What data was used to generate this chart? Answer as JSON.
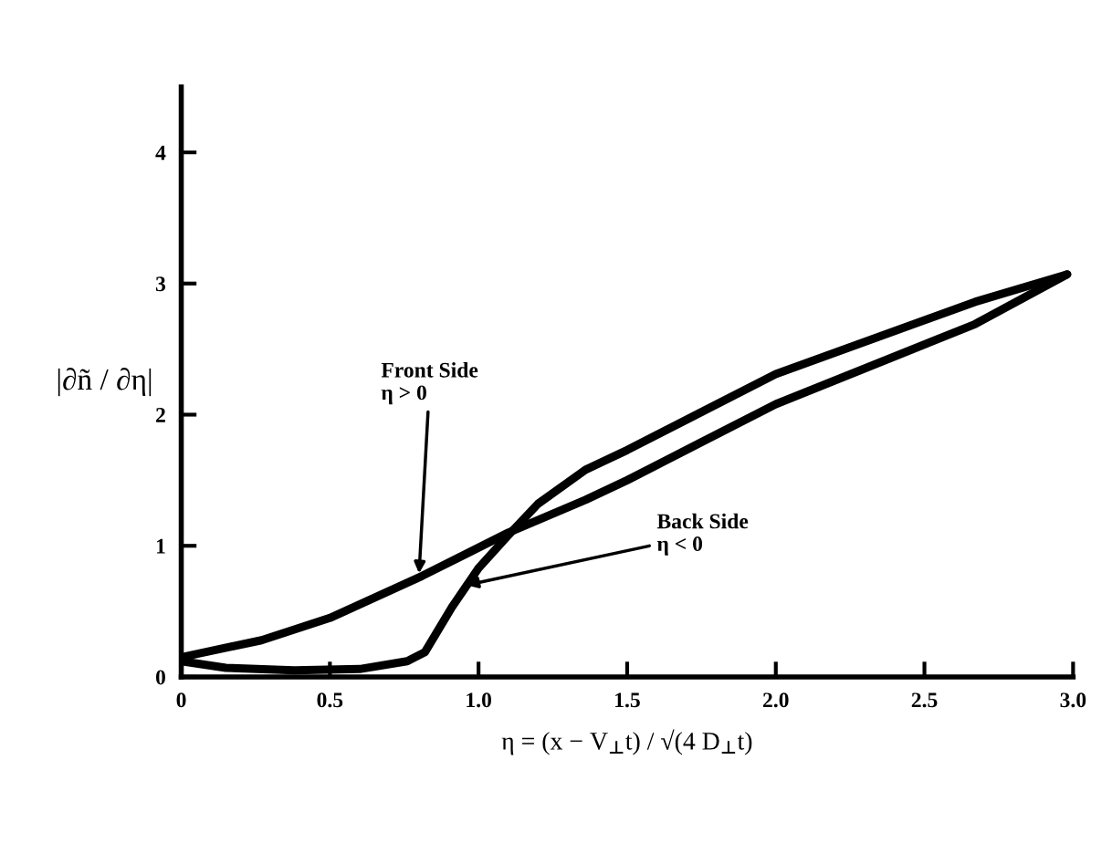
{
  "chart_data": {
    "type": "line",
    "xlabel": "η = (x − V$_{⊥}$t) / √(4 D$_{⊥}$t)",
    "ylabel": "|∂ñ / ∂η|",
    "xlim": [
      0,
      3.0
    ],
    "ylim": [
      0,
      4.5
    ],
    "xticks": [
      0,
      0.5,
      {
        "value": 1,
        "label": "1.0"
      },
      1.5,
      {
        "value": 2,
        "label": "2.0"
      },
      2.5,
      {
        "value": 3,
        "label": "3.0"
      }
    ],
    "yticks": [
      0,
      1,
      2,
      3,
      4
    ],
    "grid": false,
    "marker": "none",
    "line_style": "solid",
    "series": [
      {
        "color": "#000000",
        "x": [
          0,
          0.27,
          0.5,
          0.81,
          1.1,
          1.36,
          1.5,
          2.0,
          2.67,
          2.98
        ],
        "values": [
          0.15,
          0.28,
          0.45,
          0.77,
          1.1,
          1.35,
          1.5,
          2.08,
          2.69,
          3.07
        ]
      },
      {
        "color": "#000000",
        "x": [
          0,
          0.15,
          0.38,
          0.6,
          0.76,
          0.82,
          0.91,
          1.0,
          1.1,
          1.2,
          1.36,
          1.5,
          2.0,
          2.67,
          2.98
        ],
        "values": [
          0.12,
          0.07,
          0.05,
          0.06,
          0.12,
          0.19,
          0.53,
          0.83,
          1.08,
          1.32,
          1.58,
          1.73,
          2.31,
          2.86,
          3.07
        ]
      }
    ],
    "annotations": [
      {
        "text": "Front Side\nη > 0",
        "x": 0.8,
        "y": 0.79
      },
      {
        "text": "Back Side\nη < 0",
        "x": 0.96,
        "y": 0.7
      }
    ]
  }
}
